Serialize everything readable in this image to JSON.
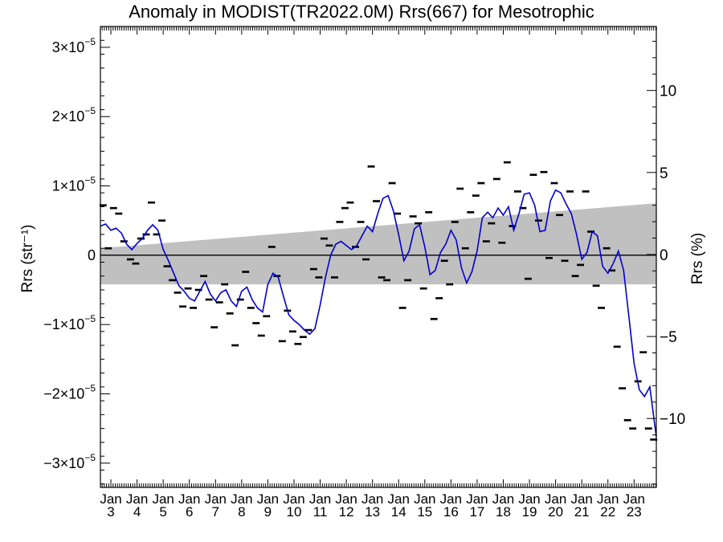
{
  "chart_data": {
    "type": "line",
    "title": "Anomaly in MODIST(TR2022.0M) Rrs(667) for Mesotrophic",
    "ylabel": "Rrs (str⁻¹)",
    "ylabel_right": "Rrs (%)",
    "ylim": [
      -3.35e-05,
      3.3e-05
    ],
    "ylim_right": [
      -14.2,
      13.9
    ],
    "xlim": [
      2002.6,
      2023.85
    ],
    "x_ticks": [
      {
        "top": "Jan",
        "bottom": "3",
        "x": 2003
      },
      {
        "top": "Jan",
        "bottom": "4",
        "x": 2004
      },
      {
        "top": "Jan",
        "bottom": "5",
        "x": 2005
      },
      {
        "top": "Jan",
        "bottom": "6",
        "x": 2006
      },
      {
        "top": "Jan",
        "bottom": "7",
        "x": 2007
      },
      {
        "top": "Jan",
        "bottom": "8",
        "x": 2008
      },
      {
        "top": "Jan",
        "bottom": "9",
        "x": 2009
      },
      {
        "top": "Jan",
        "bottom": "10",
        "x": 2010
      },
      {
        "top": "Jan",
        "bottom": "11",
        "x": 2011
      },
      {
        "top": "Jan",
        "bottom": "12",
        "x": 2012
      },
      {
        "top": "Jan",
        "bottom": "13",
        "x": 2013
      },
      {
        "top": "Jan",
        "bottom": "14",
        "x": 2014
      },
      {
        "top": "Jan",
        "bottom": "15",
        "x": 2015
      },
      {
        "top": "Jan",
        "bottom": "16",
        "x": 2016
      },
      {
        "top": "Jan",
        "bottom": "17",
        "x": 2017
      },
      {
        "top": "Jan",
        "bottom": "18",
        "x": 2018
      },
      {
        "top": "Jan",
        "bottom": "19",
        "x": 2019
      },
      {
        "top": "Jan",
        "bottom": "20",
        "x": 2020
      },
      {
        "top": "Jan",
        "bottom": "21",
        "x": 2021
      },
      {
        "top": "Jan",
        "bottom": "22",
        "x": 2022
      },
      {
        "top": "Jan",
        "bottom": "23",
        "x": 2023
      }
    ],
    "y_ticks_left": [
      {
        "value": 3e-05,
        "mant": "3×10",
        "exp": "−5"
      },
      {
        "value": 2e-05,
        "mant": "2×10",
        "exp": "−5"
      },
      {
        "value": 1e-05,
        "mant": "1×10",
        "exp": "−5"
      },
      {
        "value": 0,
        "mant": "0",
        "exp": ""
      },
      {
        "value": -1e-05,
        "mant": "−1×10",
        "exp": "−5"
      },
      {
        "value": -2e-05,
        "mant": "−2×10",
        "exp": "−5"
      },
      {
        "value": -3e-05,
        "mant": "−3×10",
        "exp": "−5"
      }
    ],
    "y_ticks_right": [
      {
        "value": 10,
        "label": "10"
      },
      {
        "value": 5,
        "label": "5"
      },
      {
        "value": 0,
        "label": "0"
      },
      {
        "value": -5,
        "label": "−5"
      },
      {
        "value": -10,
        "label": "−10"
      }
    ],
    "band": {
      "x": [
        2002.6,
        2023.85
      ],
      "upper": [
        1e-06,
        7.5e-06
      ],
      "lower": [
        -4.2e-06,
        -4.2e-06
      ],
      "color": "#c0c0c0"
    },
    "zero_line": true,
    "series": [
      {
        "style": "line",
        "color": "#0000cc",
        "x": [
          2002.6,
          2002.8,
          2003.0,
          2003.2,
          2003.4,
          2003.6,
          2003.8,
          2004.0,
          2004.2,
          2004.4,
          2004.6,
          2004.8,
          2005.0,
          2005.2,
          2005.4,
          2005.6,
          2005.8,
          2006.0,
          2006.2,
          2006.4,
          2006.6,
          2006.8,
          2007.0,
          2007.2,
          2007.4,
          2007.6,
          2007.8,
          2008.0,
          2008.2,
          2008.4,
          2008.6,
          2008.8,
          2009.0,
          2009.2,
          2009.4,
          2009.6,
          2009.8,
          2010.0,
          2010.2,
          2010.4,
          2010.6,
          2010.8,
          2011.0,
          2011.2,
          2011.4,
          2011.6,
          2011.8,
          2012.0,
          2012.2,
          2012.4,
          2012.6,
          2012.8,
          2013.0,
          2013.2,
          2013.4,
          2013.6,
          2013.8,
          2014.0,
          2014.2,
          2014.4,
          2014.6,
          2014.8,
          2015.0,
          2015.2,
          2015.4,
          2015.6,
          2015.8,
          2016.0,
          2016.2,
          2016.4,
          2016.6,
          2016.8,
          2017.0,
          2017.2,
          2017.4,
          2017.6,
          2017.8,
          2018.0,
          2018.2,
          2018.4,
          2018.6,
          2018.8,
          2019.0,
          2019.2,
          2019.4,
          2019.6,
          2019.8,
          2020.0,
          2020.2,
          2020.4,
          2020.6,
          2020.8,
          2021.0,
          2021.2,
          2021.4,
          2021.6,
          2021.8,
          2022.0,
          2022.2,
          2022.4,
          2022.6,
          2022.8,
          2023.0,
          2023.2,
          2023.4,
          2023.6,
          2023.85
        ],
        "y": [
          4.2e-06,
          4.5e-06,
          3.6e-06,
          3.9e-06,
          3.2e-06,
          1.6e-06,
          8e-07,
          1.7e-06,
          2.4e-06,
          3.6e-06,
          4.4e-06,
          3.6e-06,
          8e-07,
          -8e-07,
          -2.6e-06,
          -4.4e-06,
          -5.2e-06,
          -6.2e-06,
          -6.6e-06,
          -5.2e-06,
          -3.8e-06,
          -5.6e-06,
          -6.6e-06,
          -5.4e-06,
          -5e-06,
          -6.6e-06,
          -7.4e-06,
          -5.2e-06,
          -4.6e-06,
          -6.4e-06,
          -7.6e-06,
          -8.2e-06,
          -4.2e-06,
          -2.6e-06,
          -3.2e-06,
          -6e-06,
          -8.6e-06,
          -9.4e-06,
          -1e-05,
          -1.08e-05,
          -1.14e-05,
          -1.06e-05,
          -7.2e-06,
          -3.2e-06,
          0.0,
          1.6e-06,
          2e-06,
          1.4e-06,
          8e-07,
          1.4e-06,
          2.8e-06,
          4.2e-06,
          3.4e-06,
          6e-06,
          8.2e-06,
          8.6e-06,
          6.4e-06,
          3e-06,
          -8e-07,
          6e-07,
          3.8e-06,
          4.4e-06,
          1.2e-06,
          -2.8e-06,
          -2.2e-06,
          4e-07,
          1.6e-06,
          3.6e-06,
          2.2e-06,
          -1.8e-06,
          -4e-06,
          -2.4e-06,
          6e-07,
          5.4e-06,
          6.2e-06,
          5.4e-06,
          6.8e-06,
          5.8e-06,
          7e-06,
          3.6e-06,
          6e-06,
          8.8e-06,
          9e-06,
          7.2e-06,
          3.4e-06,
          3.6e-06,
          7.8e-06,
          9.4e-06,
          9e-06,
          7.4e-06,
          6e-06,
          3e-06,
          -6e-07,
          4e-07,
          3.4e-06,
          2.8e-06,
          -1.6e-06,
          -2.6e-06,
          -1.2e-06,
          6e-07,
          -2.2e-06,
          -8.8e-06,
          -1.56e-05,
          -1.94e-05,
          -2.04e-05,
          -1.9e-05,
          -2.62e-05
        ]
      },
      {
        "style": "points",
        "color": "#000000",
        "x": [
          2002.7,
          2002.9,
          2003.1,
          2003.3,
          2003.5,
          2003.75,
          2003.95,
          2004.15,
          2004.35,
          2004.55,
          2004.75,
          2004.95,
          2005.15,
          2005.35,
          2005.55,
          2005.75,
          2005.95,
          2006.15,
          2006.35,
          2006.55,
          2006.75,
          2006.95,
          2007.15,
          2007.35,
          2007.55,
          2007.75,
          2007.95,
          2008.15,
          2008.35,
          2008.55,
          2008.75,
          2008.95,
          2009.15,
          2009.35,
          2009.55,
          2009.75,
          2009.95,
          2010.15,
          2010.35,
          2010.55,
          2010.75,
          2010.95,
          2011.15,
          2011.35,
          2011.55,
          2011.75,
          2011.95,
          2012.15,
          2012.35,
          2012.55,
          2012.75,
          2012.95,
          2013.15,
          2013.35,
          2013.55,
          2013.75,
          2013.95,
          2014.15,
          2014.35,
          2014.55,
          2014.75,
          2014.95,
          2015.15,
          2015.35,
          2015.55,
          2015.75,
          2015.95,
          2016.15,
          2016.35,
          2016.55,
          2016.75,
          2016.95,
          2017.15,
          2017.35,
          2017.55,
          2017.75,
          2017.95,
          2018.15,
          2018.35,
          2018.55,
          2018.75,
          2018.95,
          2019.15,
          2019.35,
          2019.55,
          2019.75,
          2019.95,
          2020.15,
          2020.35,
          2020.55,
          2020.75,
          2020.95,
          2021.15,
          2021.35,
          2021.55,
          2021.75,
          2021.95,
          2022.15,
          2022.35,
          2022.55,
          2022.75,
          2022.95,
          2023.15,
          2023.35,
          2023.55,
          2023.75
        ],
        "y": [
          7.2e-06,
          1e-06,
          6.8e-06,
          6e-06,
          2e-06,
          -6e-07,
          -1.2e-06,
          2.4e-06,
          3e-06,
          7.6e-06,
          3e-06,
          5e-06,
          -1.6e-06,
          -3.6e-06,
          -5.4e-06,
          -7.4e-06,
          -4.8e-06,
          -7.6e-06,
          -5e-06,
          -3e-06,
          -6.4e-06,
          -1.04e-05,
          -6.8e-06,
          -4.2e-06,
          -8.4e-06,
          -1.3e-05,
          -6.4e-06,
          -2.4e-06,
          -7.6e-06,
          -9.8e-06,
          -1.16e-05,
          -8.8e-06,
          1.2e-06,
          -3e-06,
          -1.24e-05,
          -8e-06,
          -1.1e-05,
          -1.28e-05,
          -1.18e-05,
          -1.08e-05,
          -2e-06,
          -3.2e-06,
          2.4e-06,
          1.4e-06,
          -3.2e-06,
          4.8e-06,
          6.8e-06,
          7.6e-06,
          1.2e-06,
          4.8e-06,
          -6e-07,
          1.28e-05,
          7.8e-06,
          -3.2e-06,
          -3.6e-06,
          1.04e-05,
          6e-06,
          -7.6e-06,
          -3.6e-06,
          5.6e-06,
          4.6e-06,
          -4.8e-06,
          6.2e-06,
          -9.2e-06,
          -6.2e-06,
          -8e-07,
          -4.2e-06,
          4.8e-06,
          9.6e-06,
          1e-06,
          6.2e-06,
          8.6e-06,
          1.04e-05,
          2e-06,
          4.6e-06,
          1.1e-05,
          1.8e-06,
          1.34e-05,
          4.2e-06,
          9.2e-06,
          6.8e-06,
          -3.4e-06,
          1.16e-05,
          5e-06,
          1.2e-05,
          -4e-07,
          1.04e-05,
          5.8e-06,
          -8e-07,
          9.2e-06,
          -3e-06,
          -1.4e-06,
          9.2e-06,
          3.4e-06,
          -4.4e-06,
          -7.6e-06,
          1e-06,
          -2.2e-06,
          -1.32e-05,
          -1.92e-05,
          -2.38e-05,
          -2.5e-05,
          -1.82e-05,
          -1.4e-05,
          -2.5e-05,
          -2.66e-05
        ]
      }
    ]
  }
}
